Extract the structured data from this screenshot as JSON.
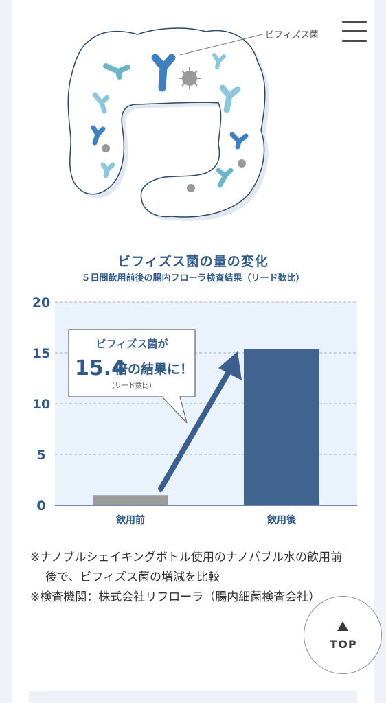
{
  "illustration": {
    "callout_label": "ビフィズス菌"
  },
  "chart_data": {
    "type": "bar",
    "title": "ビフィズス菌の量の変化",
    "subtitle": "５日間飲用前後の腸内フローラ検査結果（リード数比）",
    "categories": [
      "飲用前",
      "飲用後"
    ],
    "values": [
      1,
      15.4
    ],
    "ylim": [
      0,
      20
    ],
    "yticks": [
      0,
      5,
      10,
      15,
      20
    ],
    "grid": true,
    "colors": {
      "before": "#9b9b9b",
      "after": "#41638f",
      "arrow": "#3d5f8f",
      "plot_bg": "#eaf2fb"
    },
    "annotation": {
      "line1": "ビフィズス菌が",
      "value": "15.4",
      "line2": "倍の結果に！",
      "note": "（リード数比）"
    }
  },
  "notes": [
    "※ナノブルシェイキングボトル使用のナノバブル水の飲用前後で、ビフィズス菌の増減を比較",
    "※検査機関：株式会社リフローラ（腸内細菌検査会社）"
  ],
  "top_button": {
    "label": "TOP"
  }
}
